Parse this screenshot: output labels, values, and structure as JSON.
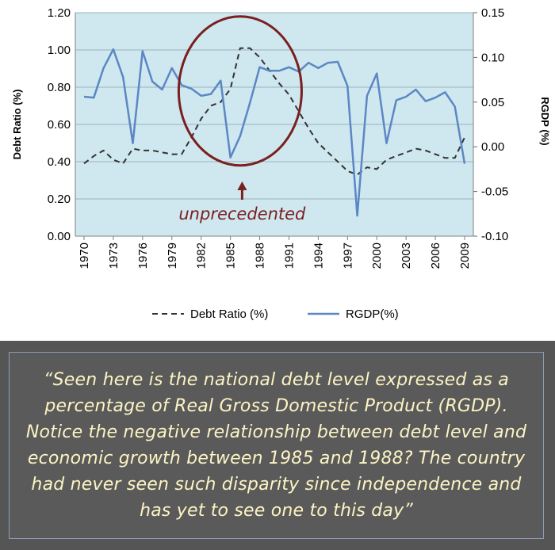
{
  "chart_data": {
    "type": "line",
    "x": [
      1970,
      1971,
      1972,
      1973,
      1974,
      1975,
      1976,
      1977,
      1978,
      1979,
      1980,
      1981,
      1982,
      1983,
      1984,
      1985,
      1986,
      1987,
      1988,
      1989,
      1990,
      1991,
      1992,
      1993,
      1994,
      1995,
      1996,
      1997,
      1998,
      1999,
      2000,
      2001,
      2002,
      2003,
      2004,
      2005,
      2006,
      2007,
      2008,
      2009
    ],
    "x_ticks": [
      "1970",
      "1973",
      "1976",
      "1979",
      "1982",
      "1985",
      "1988",
      "1991",
      "1994",
      "1997",
      "2000",
      "2003",
      "2006",
      "2009"
    ],
    "series": [
      {
        "name": "Debt Ratio  (%)",
        "axis": "left",
        "style": "dashed",
        "color": "#333333",
        "values": [
          0.39,
          0.43,
          0.46,
          0.41,
          0.39,
          0.47,
          0.46,
          0.46,
          0.45,
          0.44,
          0.44,
          0.53,
          0.63,
          0.7,
          0.72,
          0.79,
          1.01,
          1.01,
          0.96,
          0.89,
          0.82,
          0.76,
          0.67,
          0.58,
          0.5,
          0.45,
          0.4,
          0.35,
          0.33,
          0.37,
          0.36,
          0.41,
          0.43,
          0.45,
          0.47,
          0.46,
          0.44,
          0.42,
          0.42,
          0.53
        ]
      },
      {
        "name": "RGDP(%)",
        "axis": "right",
        "style": "solid",
        "color": "#5b87c5",
        "values": [
          0.056,
          0.055,
          0.088,
          0.109,
          0.078,
          0.004,
          0.107,
          0.073,
          0.064,
          0.088,
          0.069,
          0.065,
          0.057,
          0.059,
          0.074,
          -0.012,
          0.012,
          0.049,
          0.089,
          0.085,
          0.085,
          0.089,
          0.084,
          0.094,
          0.088,
          0.094,
          0.095,
          0.068,
          -0.077,
          0.057,
          0.082,
          0.004,
          0.052,
          0.056,
          0.064,
          0.051,
          0.055,
          0.061,
          0.045,
          -0.019
        ]
      }
    ],
    "ylim_left": [
      0,
      1.2
    ],
    "yticks_left": [
      "0.00",
      "0.20",
      "0.40",
      "0.60",
      "0.80",
      "1.00",
      "1.20"
    ],
    "ylabel_left": "Debt Ratio (%)",
    "ylim_right": [
      -0.1,
      0.15
    ],
    "yticks_right": [
      "-0.10",
      "-0.05",
      "0.00",
      "0.05",
      "0.10",
      "0.15"
    ],
    "ylabel_right": "RGDP (%)",
    "plot_background": "#cfe7ee",
    "grid": "horizontal",
    "legend_position": "bottom",
    "annotation": {
      "text": "unprecedented",
      "color": "#7a1f1f",
      "circle_x_range": [
        1979.7,
        1992.3
      ],
      "circle_y_range": [
        0.38,
        1.18
      ],
      "arrow_x": 1986.2
    }
  },
  "quote": "“Seen here is the national debt level expressed as a percentage of Real Gross Domestic Product (RGDP). Notice the negative relationship between debt level and economic growth between 1985 and 1988? The country had never seen such disparity since independence and has yet to see one to this day”"
}
